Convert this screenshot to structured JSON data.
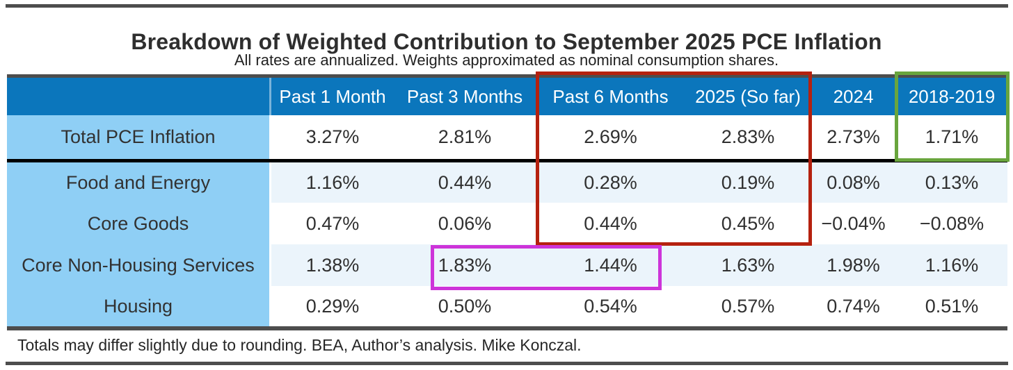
{
  "page": {
    "title": "Breakdown of Weighted Contribution to September 2025 PCE Inflation",
    "subtitle": "All rates are annualized. Weights approximated as nominal consumption shares.",
    "footer": "Totals may differ slightly due to rounding. BEA, Author’s analysis. Mike Konczal."
  },
  "colors": {
    "header_blue": "#0b76bc",
    "label_blue": "#8fcff5",
    "tint_row": "#ebf4fb",
    "rule_gray": "#4d4d4d",
    "divider_black": "#000000",
    "red_box": "#b5210f",
    "green_box": "#69a53d",
    "magenta_box": "#cd34d9"
  },
  "table": {
    "columns": [
      "",
      "Past 1 Month",
      "Past 3 Months",
      "Past 6 Months",
      "2025 (So far)",
      "2024",
      "2018-2019"
    ],
    "rows": [
      {
        "label": "Total PCE Inflation",
        "values": [
          "3.27%",
          "2.81%",
          "2.69%",
          "2.83%",
          "2.73%",
          "1.71%"
        ]
      },
      {
        "label": "Food and Energy",
        "values": [
          "1.16%",
          "0.44%",
          "0.28%",
          "0.19%",
          "0.08%",
          "0.13%"
        ]
      },
      {
        "label": "Core Goods",
        "values": [
          "0.47%",
          "0.06%",
          "0.44%",
          "0.45%",
          "−0.04%",
          "−0.08%"
        ]
      },
      {
        "label": "Core Non-Housing Services",
        "values": [
          "1.38%",
          "1.83%",
          "1.44%",
          "1.63%",
          "1.98%",
          "1.16%"
        ]
      },
      {
        "label": "Housing",
        "values": [
          "0.29%",
          "0.50%",
          "0.54%",
          "0.57%",
          "0.74%",
          "0.51%"
        ]
      }
    ]
  },
  "annotations": {
    "red_box": "Highlights Past 6 Months and 2025 (So far) columns from header through Core Goods row",
    "green_box": "Highlights 2018-2019 header and Total PCE Inflation value 1.71%",
    "magenta_box": "Highlights Core Non-Housing Services values 1.83% and 1.44%"
  },
  "chart_data": {
    "type": "table",
    "title": "Breakdown of Weighted Contribution to September 2025 PCE Inflation",
    "subtitle": "All rates are annualized. Weights approximated as nominal consumption shares.",
    "footnote": "Totals may differ slightly due to rounding. BEA, Author’s analysis. Mike Konczal.",
    "columns": [
      "Past 1 Month",
      "Past 3 Months",
      "Past 6 Months",
      "2025 (So far)",
      "2024",
      "2018-2019"
    ],
    "row_headers": [
      "Total PCE Inflation",
      "Food and Energy",
      "Core Goods",
      "Core Non-Housing Services",
      "Housing"
    ],
    "values_percent": [
      [
        3.27,
        2.81,
        2.69,
        2.83,
        2.73,
        1.71
      ],
      [
        1.16,
        0.44,
        0.28,
        0.19,
        0.08,
        0.13
      ],
      [
        0.47,
        0.06,
        0.44,
        0.45,
        -0.04,
        -0.08
      ],
      [
        1.38,
        1.83,
        1.44,
        1.63,
        1.98,
        1.16
      ],
      [
        0.29,
        0.5,
        0.54,
        0.57,
        0.74,
        0.51
      ]
    ],
    "units": "percent, annualized weighted contribution"
  }
}
